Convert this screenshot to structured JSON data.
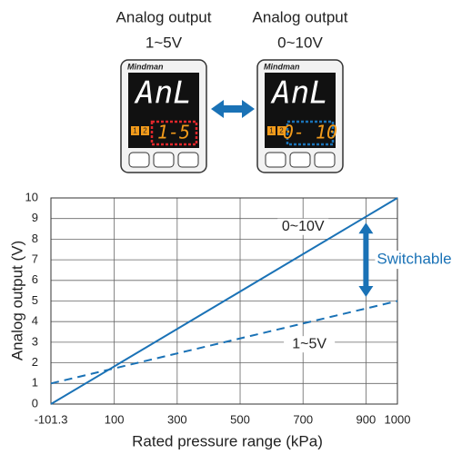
{
  "devices": [
    {
      "label": "Analog output",
      "range": "1~5V",
      "brand": "Mindman",
      "display_top": "AnL",
      "display_bottom": "1-5",
      "indicators": [
        "1",
        "2"
      ]
    },
    {
      "label": "Analog output",
      "range": "0~10V",
      "brand": "Mindman",
      "display_top": "AnL",
      "display_bottom": "0- 10",
      "indicators": [
        "1",
        "2"
      ]
    }
  ],
  "chart_data": {
    "type": "line",
    "x_label": "Rated pressure range (kPa)",
    "y_label": "Analog output (V)",
    "annotation": "Switchable",
    "x": [
      -101.3,
      1000
    ],
    "series": [
      {
        "name": "0~10V",
        "color": "#1a72b6",
        "style": "solid",
        "values": [
          0,
          10
        ]
      },
      {
        "name": "1~5V",
        "color": "#1a72b6",
        "style": "dashed",
        "values": [
          1,
          5
        ]
      }
    ],
    "xlim": [
      -101.3,
      1000
    ],
    "ylim": [
      0,
      10
    ],
    "xticks": [
      -101.3,
      100,
      300,
      500,
      700,
      900,
      1000
    ],
    "yticks": [
      0,
      1,
      2,
      3,
      4,
      5,
      6,
      7,
      8,
      9,
      10
    ],
    "grid": true
  }
}
